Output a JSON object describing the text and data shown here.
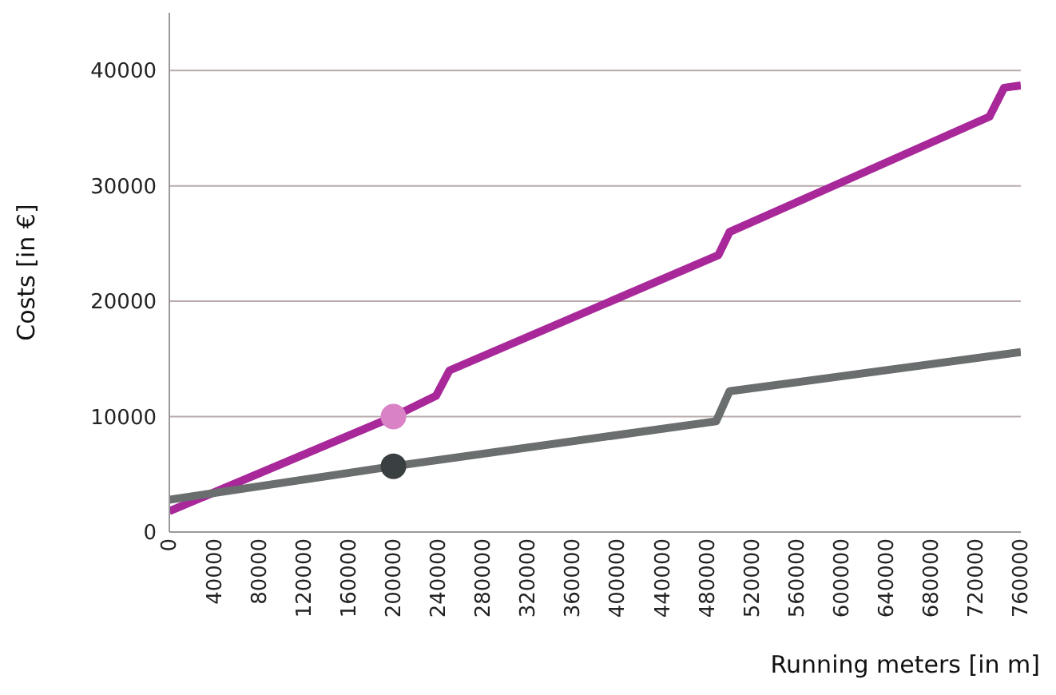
{
  "chart_data": {
    "type": "line",
    "xlabel": "Running meters [in m]",
    "ylabel": "Costs [in €]",
    "series": [
      {
        "color": "#a8289a",
        "x": [
          0,
          200000,
          238000,
          250000,
          490000,
          500000,
          732000,
          745000,
          760000
        ],
        "values": [
          1800,
          10000,
          11800,
          14000,
          24000,
          26000,
          36000,
          38500,
          38700
        ]
      },
      {
        "color": "#6b6e6e",
        "x": [
          0,
          200000,
          488000,
          500000,
          760000
        ],
        "values": [
          2800,
          5700,
          9600,
          12200,
          15600
        ]
      },
      {
        "type": "scatter",
        "marker": "circle",
        "color": "#d982c6",
        "x": [
          200000
        ],
        "values": [
          10000
        ]
      },
      {
        "type": "scatter",
        "marker": "circle",
        "color": "#3a3f42",
        "x": [
          200000
        ],
        "values": [
          5700
        ]
      }
    ],
    "xlim": [
      0,
      760000
    ],
    "xticks": [
      0,
      40000,
      80000,
      120000,
      160000,
      200000,
      240000,
      280000,
      320000,
      360000,
      400000,
      440000,
      480000,
      520000,
      560000,
      600000,
      640000,
      680000,
      720000,
      760000
    ],
    "ylim": [
      0,
      45000
    ],
    "yticks": [
      0,
      10000,
      20000,
      30000,
      40000
    ],
    "grid": "y",
    "marker": "none",
    "line_style": "solid"
  }
}
